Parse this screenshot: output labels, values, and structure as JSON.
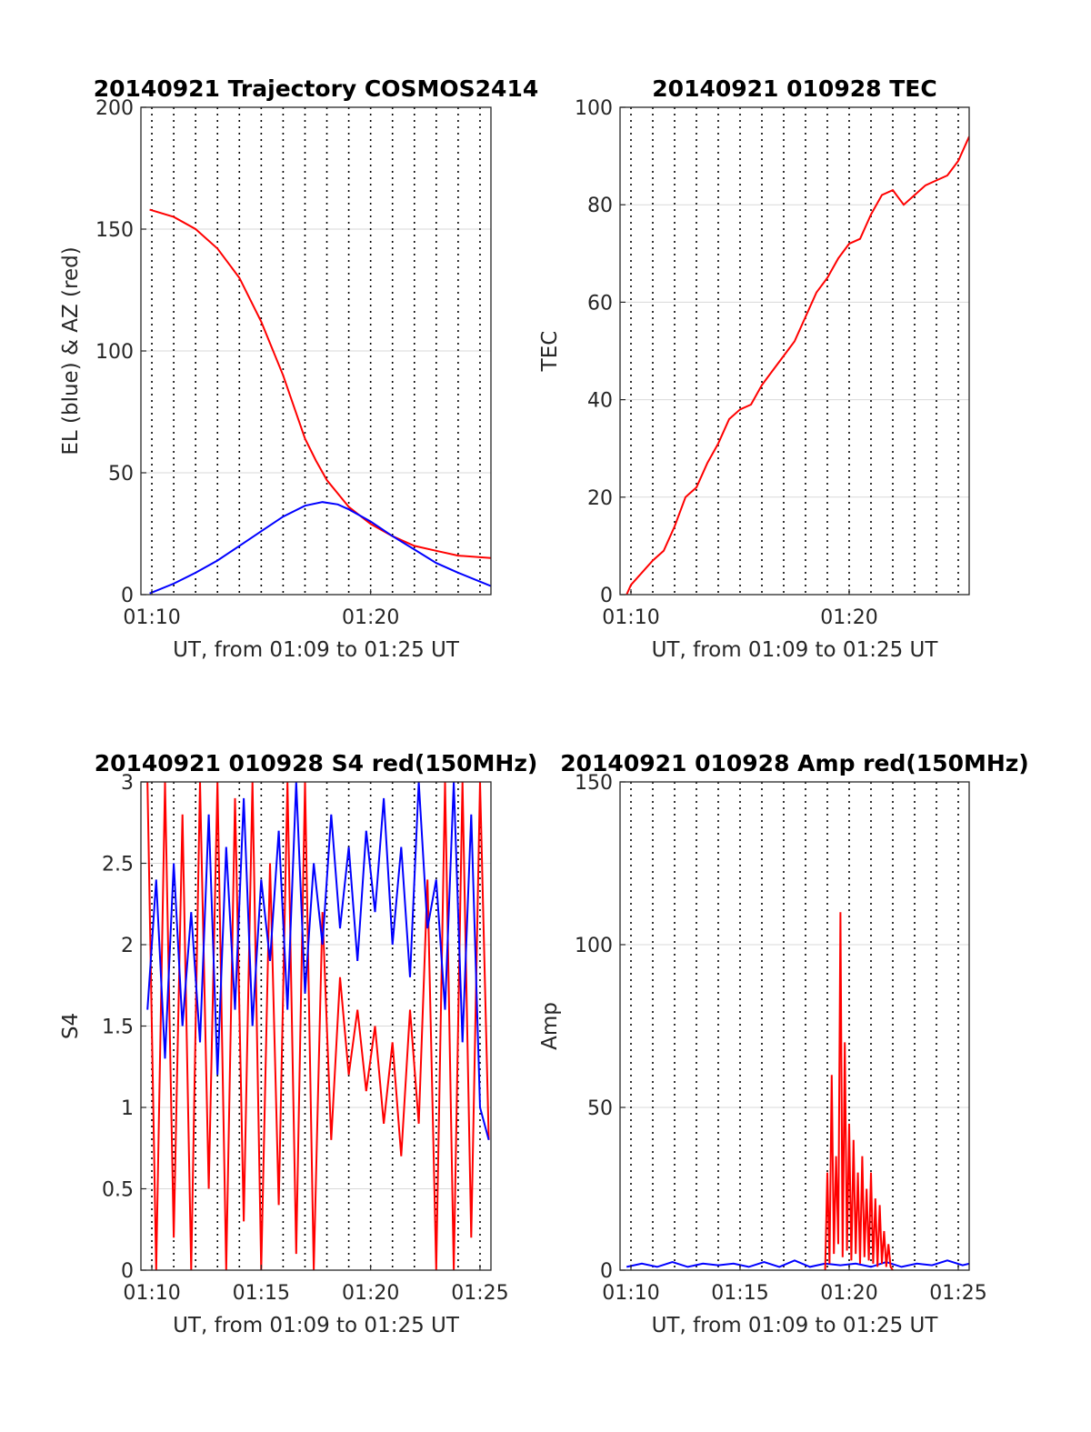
{
  "chart_data": [
    {
      "id": "traj",
      "type": "line",
      "title": "20140921 Trajectory COSMOS2414",
      "xlabel": "UT, from 01:09 to 01:25 UT",
      "ylabel": "EL (blue) & AZ (red)",
      "xlim": [
        9.5,
        25.5
      ],
      "ylim": [
        0,
        200
      ],
      "x_ticks": [
        {
          "v": 10,
          "label": "01:10"
        },
        {
          "v": 20,
          "label": "01:20"
        }
      ],
      "y_ticks": [
        {
          "v": 0,
          "label": "0"
        },
        {
          "v": 50,
          "label": "50"
        },
        {
          "v": 100,
          "label": "100"
        },
        {
          "v": 150,
          "label": "150"
        },
        {
          "v": 200,
          "label": "200"
        }
      ],
      "minor_x": [
        10,
        11,
        12,
        13,
        14,
        15,
        16,
        17,
        18,
        19,
        20,
        21,
        22,
        23,
        24,
        25
      ],
      "grid": true,
      "series": [
        {
          "color": "#ff0000",
          "x": [
            9.9,
            11,
            12,
            13,
            14,
            15,
            16,
            16.5,
            17,
            17.5,
            18,
            19,
            20,
            21,
            22,
            23,
            24,
            25.5
          ],
          "values": [
            158,
            155,
            150,
            142,
            130,
            112,
            90,
            77,
            64,
            55,
            47,
            36,
            29,
            24,
            20,
            18,
            16,
            15
          ]
        },
        {
          "color": "#0000ff",
          "x": [
            9.9,
            11,
            12,
            13,
            14,
            15,
            16,
            17,
            17.8,
            18.5,
            19,
            20,
            21,
            22,
            23,
            24,
            25.5
          ],
          "values": [
            0.5,
            4.5,
            9,
            14,
            20,
            26,
            32,
            36.5,
            38,
            37,
            35,
            30,
            24,
            18.5,
            13,
            9,
            3.5
          ]
        }
      ]
    },
    {
      "id": "tec",
      "type": "line",
      "title": "20140921 010928 TEC",
      "xlabel": "UT, from 01:09 to 01:25 UT",
      "ylabel": "TEC",
      "xlim": [
        9.5,
        25.5
      ],
      "ylim": [
        0,
        100
      ],
      "x_ticks": [
        {
          "v": 10,
          "label": "01:10"
        },
        {
          "v": 20,
          "label": "01:20"
        }
      ],
      "y_ticks": [
        {
          "v": 0,
          "label": "0"
        },
        {
          "v": 20,
          "label": "20"
        },
        {
          "v": 40,
          "label": "40"
        },
        {
          "v": 60,
          "label": "60"
        },
        {
          "v": 80,
          "label": "80"
        },
        {
          "v": 100,
          "label": "100"
        }
      ],
      "minor_x": [
        10,
        11,
        12,
        13,
        14,
        15,
        16,
        17,
        18,
        19,
        20,
        21,
        22,
        23,
        24,
        25
      ],
      "grid": true,
      "series": [
        {
          "color": "#ff0000",
          "x": [
            9.8,
            10,
            11,
            11.5,
            12,
            12.5,
            13,
            13.5,
            14,
            14.5,
            15,
            15.5,
            16,
            16.5,
            17,
            17.5,
            18,
            18.5,
            19,
            19.5,
            20,
            20.5,
            21,
            21.5,
            22,
            22.5,
            23,
            23.5,
            24,
            24.5,
            25,
            25.5
          ],
          "values": [
            0,
            2,
            7,
            9,
            14,
            20,
            22,
            27,
            31,
            36,
            38,
            39,
            43,
            46,
            49,
            52,
            57,
            62,
            65,
            69,
            72,
            73,
            78,
            82,
            83,
            80,
            82,
            84,
            85,
            86,
            89,
            94
          ]
        }
      ]
    },
    {
      "id": "s4",
      "type": "line",
      "title": "20140921 010928 S4 red(150MHz)",
      "xlabel": "UT, from 01:09 to 01:25 UT",
      "ylabel": "S4",
      "xlim": [
        9.5,
        25.5
      ],
      "ylim": [
        0,
        3
      ],
      "x_ticks": [
        {
          "v": 10,
          "label": "01:10"
        },
        {
          "v": 15,
          "label": "01:15"
        },
        {
          "v": 20,
          "label": "01:20"
        },
        {
          "v": 25,
          "label": "01:25"
        }
      ],
      "y_ticks": [
        {
          "v": 0,
          "label": "0"
        },
        {
          "v": 0.5,
          "label": "0.5"
        },
        {
          "v": 1,
          "label": "1"
        },
        {
          "v": 1.5,
          "label": "1.5"
        },
        {
          "v": 2,
          "label": "2"
        },
        {
          "v": 2.5,
          "label": "2.5"
        },
        {
          "v": 3,
          "label": "3"
        }
      ],
      "minor_x": [
        10,
        11,
        12,
        13,
        14,
        15,
        16,
        17,
        18,
        19,
        20,
        21,
        22,
        23,
        24,
        25
      ],
      "grid": true,
      "series": [
        {
          "color": "#ff0000",
          "x": [
            9.8,
            10.2,
            10.6,
            11,
            11.4,
            11.8,
            12.2,
            12.6,
            13,
            13.4,
            13.8,
            14.2,
            14.6,
            15,
            15.4,
            15.8,
            16.2,
            16.6,
            17,
            17.4,
            17.8,
            18.2,
            18.6,
            19,
            19.4,
            19.8,
            20.2,
            20.6,
            21,
            21.4,
            21.8,
            22.2,
            22.6,
            23,
            23.4,
            23.8,
            24.2,
            24.6,
            25,
            25.4
          ],
          "values": [
            3,
            0,
            3,
            0.2,
            2.8,
            0,
            3,
            0.5,
            3,
            0,
            2.9,
            0.3,
            3,
            0,
            2.5,
            0.4,
            3,
            0.1,
            3,
            0,
            2.2,
            0.8,
            1.8,
            1.2,
            1.6,
            1.1,
            1.5,
            0.9,
            1.4,
            0.7,
            1.6,
            0.9,
            2.4,
            0,
            3,
            0,
            3,
            0.2,
            3,
            0.8
          ]
        },
        {
          "color": "#0000ff",
          "x": [
            9.8,
            10.2,
            10.6,
            11,
            11.4,
            11.8,
            12.2,
            12.6,
            13,
            13.4,
            13.8,
            14.2,
            14.6,
            15,
            15.4,
            15.8,
            16.2,
            16.6,
            17,
            17.4,
            17.8,
            18.2,
            18.6,
            19,
            19.4,
            19.8,
            20.2,
            20.6,
            21,
            21.4,
            21.8,
            22.2,
            22.6,
            23,
            23.4,
            23.8,
            24.2,
            24.6,
            25,
            25.4
          ],
          "values": [
            1.6,
            2.4,
            1.3,
            2.5,
            1.5,
            2.2,
            1.4,
            2.8,
            1.2,
            2.6,
            1.6,
            2.9,
            1.5,
            2.4,
            1.9,
            2.7,
            1.6,
            3,
            1.7,
            2.5,
            2,
            2.8,
            2.1,
            2.6,
            1.9,
            2.7,
            2.2,
            2.9,
            2.0,
            2.6,
            1.8,
            3,
            2.1,
            2.4,
            1.6,
            3,
            1.4,
            2.8,
            1.0,
            0.8
          ]
        }
      ]
    },
    {
      "id": "amp",
      "type": "line",
      "title": "20140921 010928 Amp red(150MHz)",
      "xlabel": "UT, from 01:09 to 01:25 UT",
      "ylabel": "Amp",
      "xlim": [
        9.5,
        25.5
      ],
      "ylim": [
        0,
        150
      ],
      "x_ticks": [
        {
          "v": 10,
          "label": "01:10"
        },
        {
          "v": 15,
          "label": "01:15"
        },
        {
          "v": 20,
          "label": "01:20"
        },
        {
          "v": 25,
          "label": "01:25"
        }
      ],
      "y_ticks": [
        {
          "v": 0,
          "label": "0"
        },
        {
          "v": 50,
          "label": "50"
        },
        {
          "v": 100,
          "label": "100"
        },
        {
          "v": 150,
          "label": "150"
        }
      ],
      "minor_x": [
        10,
        11,
        12,
        13,
        14,
        15,
        16,
        17,
        18,
        19,
        20,
        21,
        22,
        23,
        24,
        25
      ],
      "grid": true,
      "series": [
        {
          "color": "#0000ff",
          "x": [
            9.8,
            10.5,
            11.2,
            11.9,
            12.6,
            13.3,
            14,
            14.7,
            15.4,
            16.1,
            16.8,
            17.5,
            18.2,
            18.9,
            19.6,
            20.3,
            21,
            21.7,
            22.4,
            23.1,
            23.8,
            24.5,
            25.2,
            25.5
          ],
          "values": [
            1,
            2,
            1,
            2.5,
            1,
            2,
            1.5,
            2,
            1,
            2.5,
            1,
            3,
            1,
            2,
            1.5,
            2,
            1,
            2.5,
            1,
            2,
            1.5,
            3,
            1.5,
            2
          ]
        },
        {
          "color": "#ff0000",
          "x": [
            18.9,
            19.0,
            19.1,
            19.2,
            19.3,
            19.4,
            19.5,
            19.6,
            19.7,
            19.8,
            19.9,
            20.0,
            20.1,
            20.2,
            20.3,
            20.4,
            20.5,
            20.6,
            20.7,
            20.8,
            20.9,
            21.0,
            21.1,
            21.2,
            21.3,
            21.4,
            21.5,
            21.6,
            21.7,
            21.8,
            21.9,
            22.0
          ],
          "values": [
            0,
            30,
            2,
            60,
            5,
            35,
            8,
            110,
            4,
            70,
            6,
            45,
            3,
            40,
            5,
            30,
            2,
            35,
            4,
            25,
            3,
            30,
            2,
            22,
            1,
            20,
            2,
            12,
            1,
            8,
            1,
            0
          ]
        }
      ]
    }
  ]
}
